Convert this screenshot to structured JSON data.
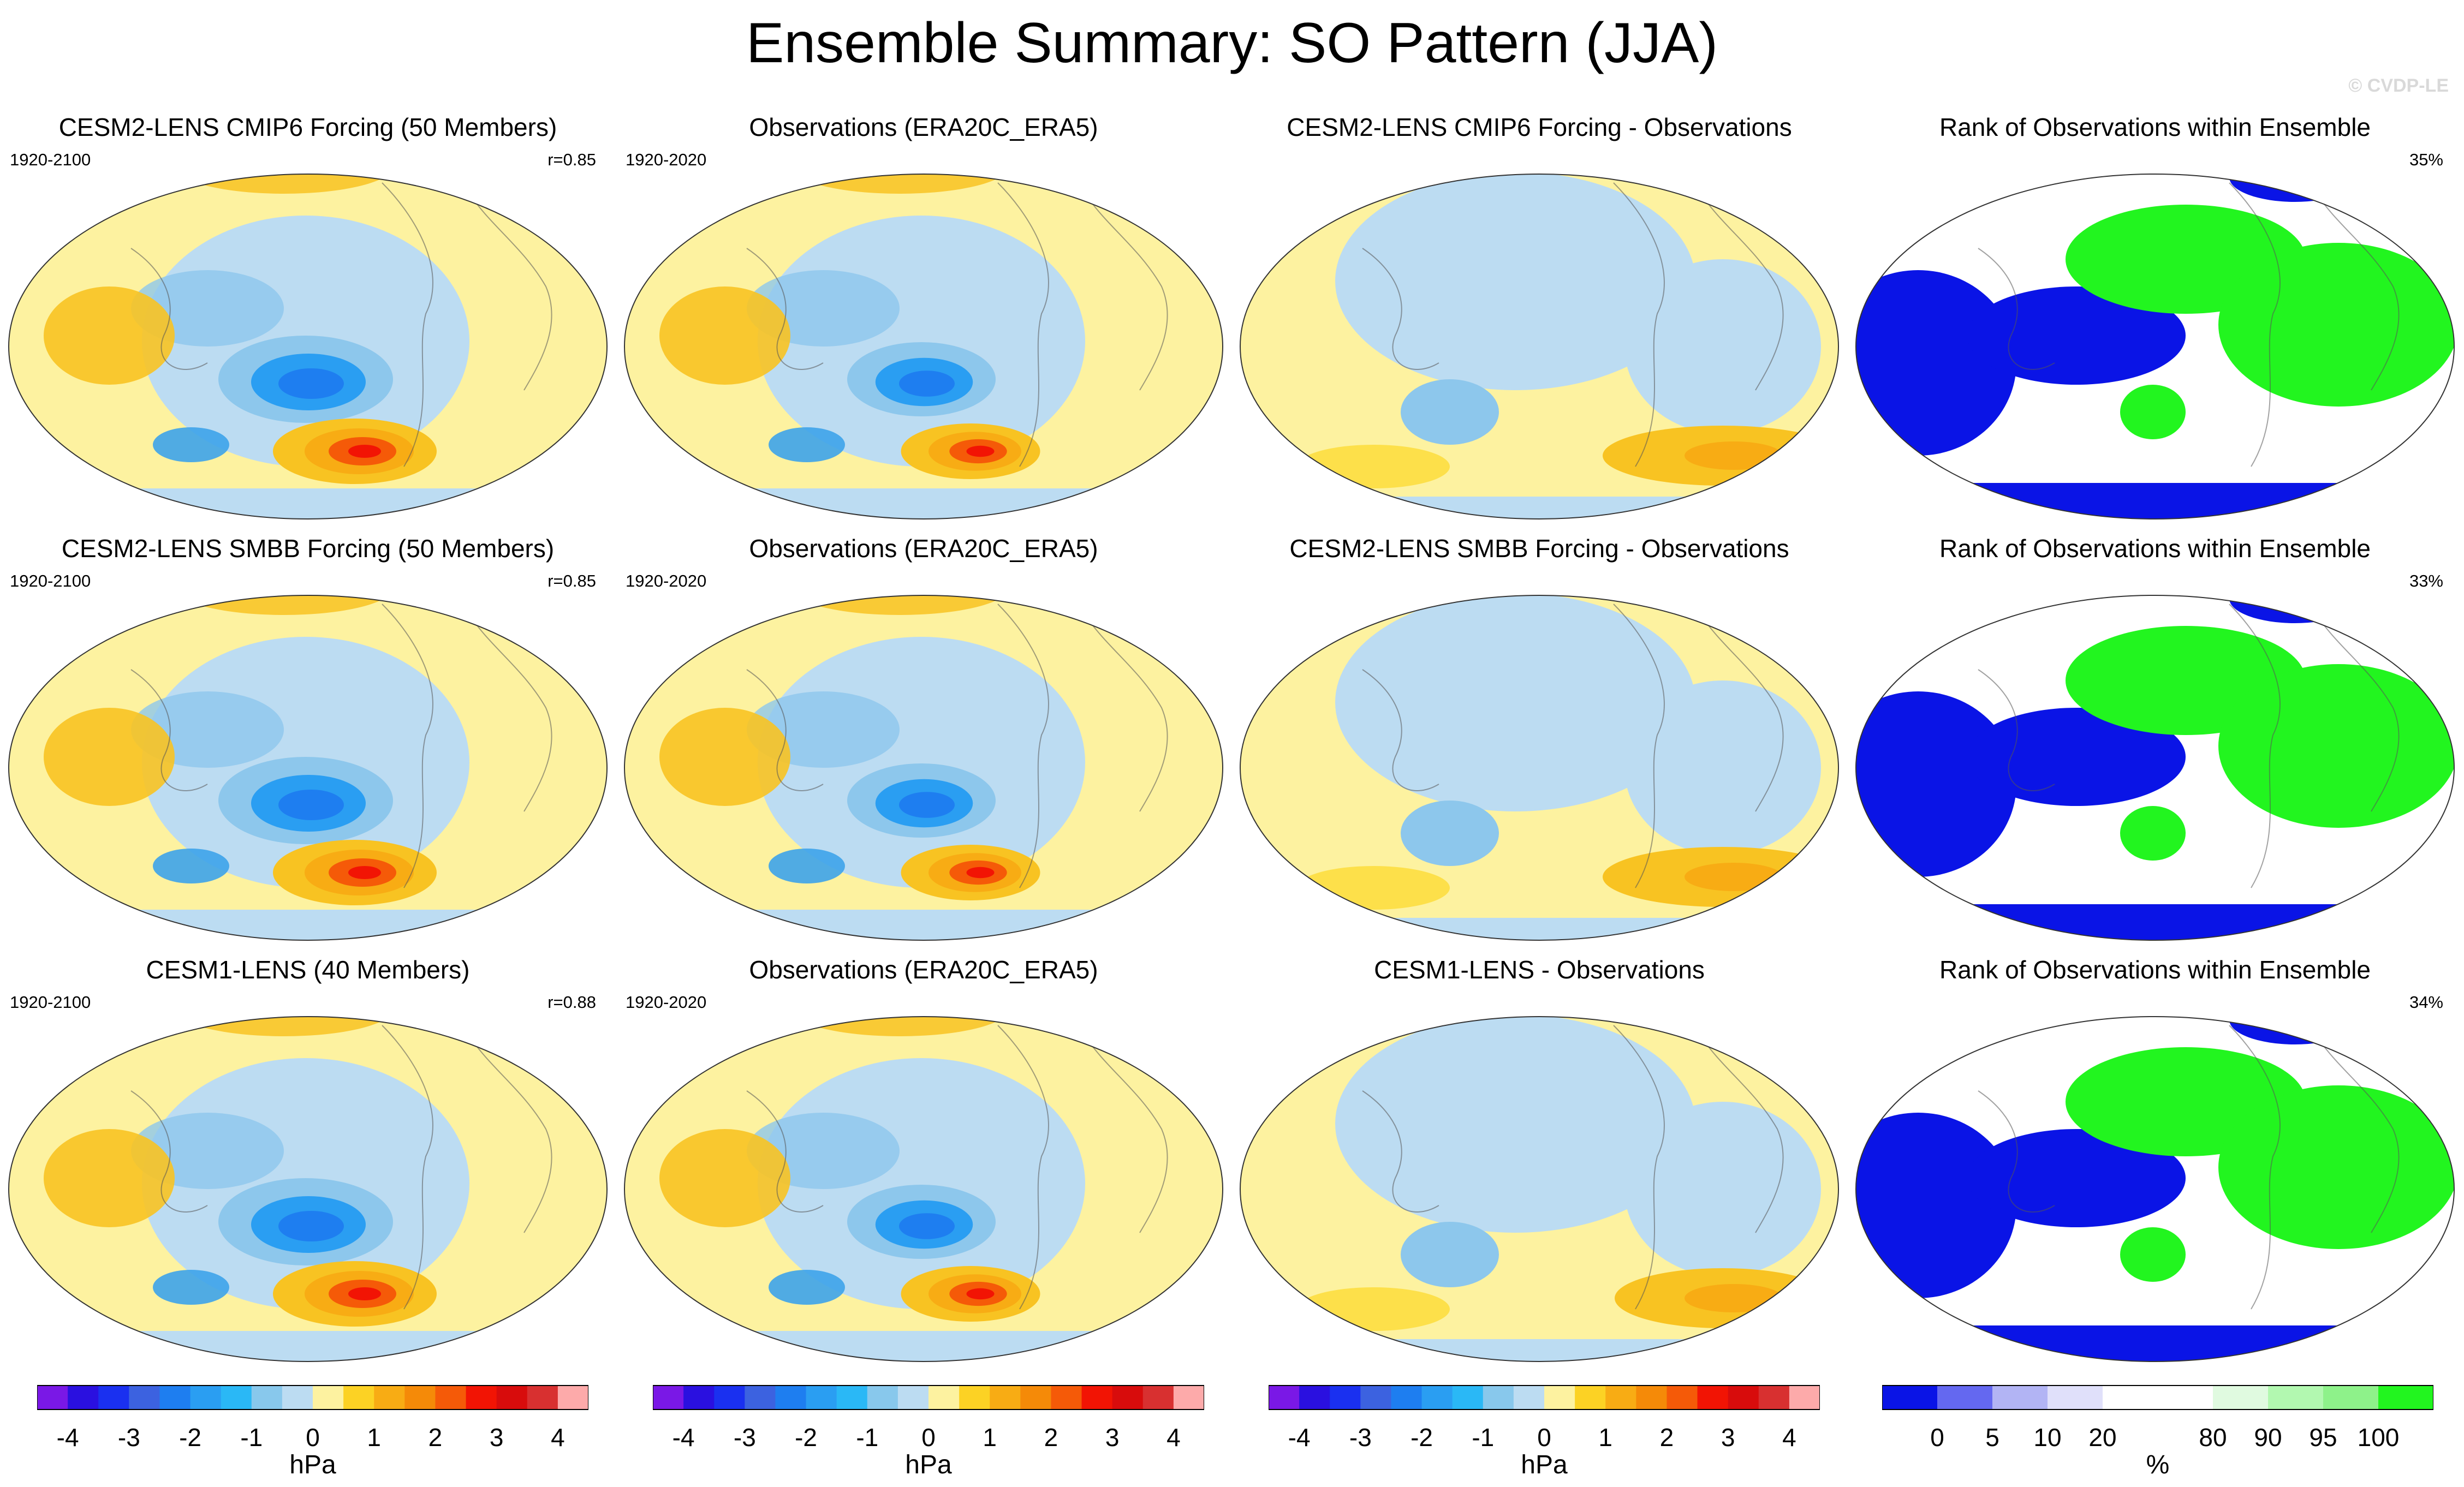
{
  "title": "Ensemble Summary: SO Pattern (JJA)",
  "watermark": "© CVDP-LE",
  "colors": {
    "ocean_neutral_pos": "#fdf2a0",
    "ocean_neutral_neg": "#bcdcf2",
    "pos1": "#fde04a",
    "pos2": "#f8c322",
    "neg1": "#8dc7ec",
    "neg2": "#3da3ea",
    "rank_low": "#0a14e6",
    "rank_mid": "#ffffff",
    "rank_high": "#22f51f"
  },
  "rows": [
    {
      "panels": [
        {
          "title": "CESM2-LENS CMIP6 Forcing (50 Members)",
          "left": "1920-2100",
          "right": "r=0.85",
          "kind": "field",
          "strength": 1.0
        },
        {
          "title": "Observations (ERA20C_ERA5)",
          "left": "1920-2020",
          "right": "",
          "kind": "field",
          "strength": 0.85
        },
        {
          "title": "CESM2-LENS CMIP6 Forcing - Observations",
          "left": "",
          "right": "",
          "kind": "diff",
          "strength": 0.5
        },
        {
          "title": "Rank of Observations within Ensemble",
          "left": "",
          "right": "35%",
          "kind": "rank"
        }
      ]
    },
    {
      "panels": [
        {
          "title": "CESM2-LENS SMBB Forcing (50 Members)",
          "left": "1920-2100",
          "right": "r=0.85",
          "kind": "field",
          "strength": 1.0
        },
        {
          "title": "Observations (ERA20C_ERA5)",
          "left": "1920-2020",
          "right": "",
          "kind": "field",
          "strength": 0.85
        },
        {
          "title": "CESM2-LENS SMBB Forcing - Observations",
          "left": "",
          "right": "",
          "kind": "diff",
          "strength": 0.5
        },
        {
          "title": "Rank of Observations within Ensemble",
          "left": "",
          "right": "33%",
          "kind": "rank"
        }
      ]
    },
    {
      "panels": [
        {
          "title": "CESM1-LENS (40 Members)",
          "left": "1920-2100",
          "right": "r=0.88",
          "kind": "field",
          "strength": 1.0
        },
        {
          "title": "Observations (ERA20C_ERA5)",
          "left": "1920-2020",
          "right": "",
          "kind": "field",
          "strength": 0.85
        },
        {
          "title": "CESM1-LENS - Observations",
          "left": "",
          "right": "",
          "kind": "diff",
          "strength": 0.45
        },
        {
          "title": "Rank of Observations within Ensemble",
          "left": "",
          "right": "34%",
          "kind": "rank"
        }
      ]
    }
  ],
  "colorbars": [
    {
      "colors": [
        "#7a18e6",
        "#2a10e0",
        "#1a30f0",
        "#3c62e0",
        "#1e7ef0",
        "#2a9ef2",
        "#2ab8f6",
        "#88c8ec",
        "#bcdcf2",
        "#fdf2a0",
        "#fcd224",
        "#f8ac14",
        "#f58a08",
        "#f55a08",
        "#f21404",
        "#d80c0c",
        "#d83030",
        "#fdaaaa"
      ],
      "ticks": [
        "-4",
        "-3",
        "-2",
        "-1",
        "0",
        "1",
        "2",
        "3",
        "4"
      ],
      "unit": "hPa"
    },
    {
      "colors": [
        "#7a18e6",
        "#2a10e0",
        "#1a30f0",
        "#3c62e0",
        "#1e7ef0",
        "#2a9ef2",
        "#2ab8f6",
        "#88c8ec",
        "#bcdcf2",
        "#fdf2a0",
        "#fcd224",
        "#f8ac14",
        "#f58a08",
        "#f55a08",
        "#f21404",
        "#d80c0c",
        "#d83030",
        "#fdaaaa"
      ],
      "ticks": [
        "-4",
        "-3",
        "-2",
        "-1",
        "0",
        "1",
        "2",
        "3",
        "4"
      ],
      "unit": "hPa"
    },
    {
      "colors": [
        "#7a18e6",
        "#2a10e0",
        "#1a30f0",
        "#3c62e0",
        "#1e7ef0",
        "#2a9ef2",
        "#2ab8f6",
        "#88c8ec",
        "#bcdcf2",
        "#fdf2a0",
        "#fcd224",
        "#f8ac14",
        "#f58a08",
        "#f55a08",
        "#f21404",
        "#d80c0c",
        "#d83030",
        "#fdaaaa"
      ],
      "ticks": [
        "-4",
        "-3",
        "-2",
        "-1",
        "0",
        "1",
        "2",
        "3",
        "4"
      ],
      "unit": "hPa"
    },
    {
      "colors": [
        "#0a14e6",
        "#6468f0",
        "#b2b4f4",
        "#e0e0fa",
        "#ffffff",
        "#ffffff",
        "#e0fae0",
        "#b2f8b0",
        "#8ef28a",
        "#22f51f"
      ],
      "ticks": [
        "0",
        "5",
        "10",
        "20",
        "80",
        "90",
        "95",
        "100"
      ],
      "unit": "%"
    }
  ]
}
